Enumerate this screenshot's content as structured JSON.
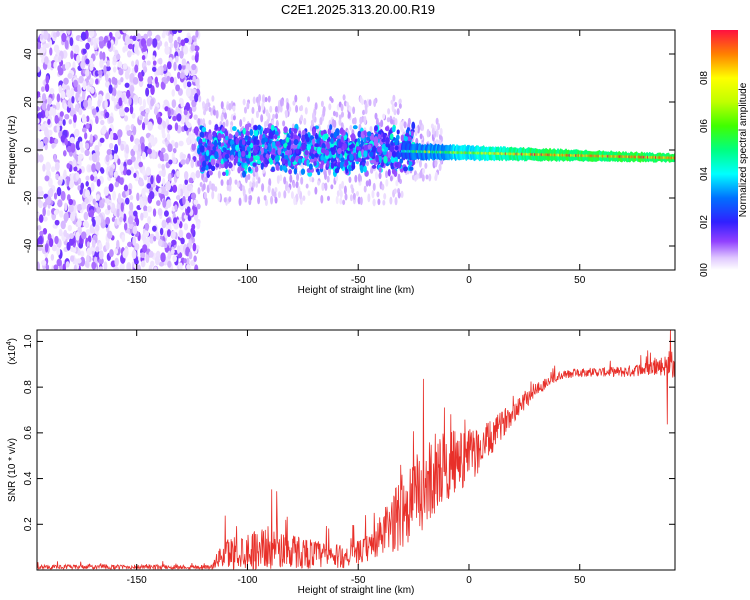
{
  "title": "C2E1.2025.313.20.00.R19",
  "chart_data": [
    {
      "type": "heatmap",
      "name": "spectrogram",
      "xlabel": "Height of straight line (km)",
      "ylabel": "Frequency (Hz)",
      "xlim": [
        -195,
        93
      ],
      "ylim": [
        -50,
        50
      ],
      "xticks": [
        -150,
        -100,
        -50,
        0,
        50
      ],
      "yticks": [
        -40,
        -20,
        0,
        20,
        40
      ],
      "colorbar": {
        "label": "Normalized spectral amplitude",
        "range": [
          0,
          1
        ],
        "ticks": [
          "0.0",
          "0.2",
          "0.4",
          "0.6",
          "0.8"
        ],
        "tick_values": [
          0.0,
          0.2,
          0.4,
          0.6,
          0.8
        ]
      },
      "description_regions": [
        {
          "x_range": [
            -195,
            -122
          ],
          "freq_range": [
            -50,
            50
          ],
          "amplitude": [
            0.0,
            0.15
          ]
        },
        {
          "x_range": [
            -122,
            -25
          ],
          "freq_range": [
            -12,
            12
          ],
          "amplitude": [
            0.1,
            0.45
          ]
        },
        {
          "x_range": [
            -25,
            93
          ],
          "freq_range": [
            -4,
            3
          ],
          "amplitude": [
            0.4,
            1.0
          ]
        }
      ]
    },
    {
      "type": "line",
      "name": "snr",
      "xlabel": "Height of straight line (km)",
      "ylabel": "SNR (10 * v/v)",
      "yscale_label": "(x10",
      "yscale_exp": "4",
      "xlim": [
        -195,
        93
      ],
      "ylim": [
        0,
        1.05
      ],
      "xticks": [
        -150,
        -100,
        -50,
        0,
        50
      ],
      "yticks": [
        0.2,
        0.4,
        0.6,
        0.8,
        1.0
      ],
      "ytick_labels": [
        "0.2",
        "0.4",
        "0.6",
        "0.8",
        "1.0"
      ],
      "color": "#e8302a",
      "envelope": {
        "x": [
          -195,
          -150,
          -125,
          -116,
          -113,
          -110,
          -100,
          -90,
          -80,
          -70,
          -60,
          -52,
          -45,
          -40,
          -35,
          -30,
          -25,
          -20,
          -15,
          -10,
          -5,
          0,
          5,
          10,
          15,
          20,
          25,
          30,
          35,
          40,
          50,
          60,
          70,
          80,
          85,
          89,
          90,
          91,
          93
        ],
        "base": [
          0.01,
          0.01,
          0.01,
          0.01,
          0.04,
          0.05,
          0.06,
          0.07,
          0.06,
          0.05,
          0.04,
          0.05,
          0.08,
          0.12,
          0.16,
          0.2,
          0.26,
          0.3,
          0.38,
          0.4,
          0.44,
          0.46,
          0.5,
          0.55,
          0.62,
          0.68,
          0.73,
          0.78,
          0.81,
          0.84,
          0.86,
          0.86,
          0.86,
          0.87,
          0.88,
          0.88,
          0.88,
          0.88,
          0.88
        ],
        "spread": [
          0.02,
          0.02,
          0.02,
          0.02,
          0.08,
          0.14,
          0.17,
          0.19,
          0.16,
          0.13,
          0.11,
          0.1,
          0.12,
          0.18,
          0.26,
          0.34,
          0.36,
          0.36,
          0.36,
          0.3,
          0.28,
          0.24,
          0.2,
          0.16,
          0.12,
          0.1,
          0.09,
          0.07,
          0.05,
          0.04,
          0.04,
          0.04,
          0.05,
          0.06,
          0.08,
          0.1,
          0.12,
          0.14,
          0.1
        ]
      }
    }
  ]
}
